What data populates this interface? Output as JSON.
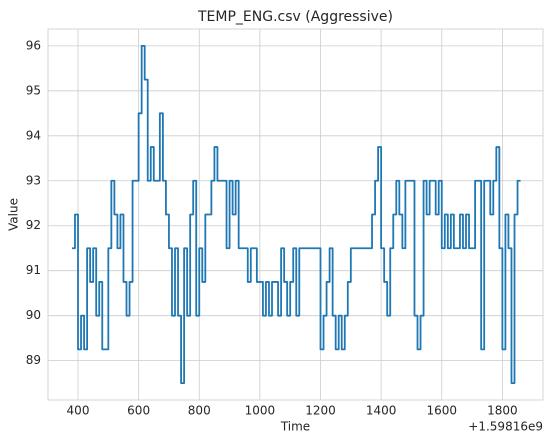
{
  "chart_data": {
    "type": "line",
    "title": "TEMP_ENG.csv (Aggressive)",
    "xlabel": "Time",
    "ylabel": "Value",
    "x_offset_label": "+1.59816e9",
    "x": [
      380,
      390,
      400,
      410,
      420,
      430,
      440,
      450,
      460,
      470,
      480,
      490,
      500,
      510,
      520,
      530,
      540,
      550,
      560,
      570,
      580,
      590,
      600,
      610,
      620,
      630,
      640,
      650,
      660,
      670,
      680,
      690,
      700,
      710,
      720,
      730,
      740,
      750,
      760,
      770,
      780,
      790,
      800,
      810,
      820,
      830,
      840,
      850,
      860,
      870,
      880,
      890,
      900,
      910,
      920,
      930,
      940,
      950,
      960,
      970,
      980,
      990,
      1000,
      1010,
      1020,
      1030,
      1040,
      1050,
      1060,
      1070,
      1080,
      1090,
      1100,
      1110,
      1120,
      1130,
      1140,
      1150,
      1160,
      1170,
      1180,
      1190,
      1200,
      1210,
      1220,
      1230,
      1240,
      1250,
      1260,
      1270,
      1280,
      1290,
      1300,
      1310,
      1320,
      1330,
      1340,
      1350,
      1360,
      1370,
      1380,
      1390,
      1400,
      1410,
      1420,
      1430,
      1440,
      1450,
      1460,
      1470,
      1480,
      1490,
      1500,
      1510,
      1520,
      1530,
      1540,
      1550,
      1560,
      1570,
      1580,
      1590,
      1600,
      1610,
      1620,
      1630,
      1640,
      1650,
      1660,
      1670,
      1680,
      1690,
      1700,
      1710,
      1720,
      1730,
      1740,
      1750,
      1760,
      1770,
      1780,
      1790,
      1800,
      1810,
      1820,
      1830,
      1840,
      1850,
      1860
    ],
    "series": [
      {
        "name": "Value",
        "color": "#1f77b4",
        "values": [
          91.5,
          92.25,
          89.25,
          90,
          89.25,
          91.5,
          90.75,
          91.5,
          90,
          90.75,
          89.25,
          89.25,
          91.5,
          93,
          92.25,
          91.5,
          92.25,
          90.75,
          90,
          90.75,
          93,
          93,
          94.5,
          96,
          95.25,
          93,
          93.75,
          93,
          93,
          94.5,
          93,
          92.25,
          91.5,
          90,
          91.5,
          90,
          88.5,
          91.5,
          90,
          92.25,
          93,
          90,
          91.5,
          90.75,
          92.25,
          92.25,
          93,
          93.75,
          93,
          93,
          93,
          91.5,
          93,
          92.25,
          93,
          91.5,
          91.5,
          91.5,
          90.75,
          91.5,
          91.5,
          90.75,
          90.75,
          90,
          90.75,
          90,
          90.75,
          90.75,
          90,
          91.5,
          90.75,
          90,
          90.75,
          91.5,
          90,
          91.5,
          91.5,
          91.5,
          91.5,
          91.5,
          91.5,
          91.5,
          89.25,
          90,
          90.75,
          91.5,
          90,
          89.25,
          90,
          89.25,
          90,
          90.75,
          91.5,
          91.5,
          91.5,
          91.5,
          91.5,
          91.5,
          91.5,
          92.25,
          93,
          93.75,
          91.5,
          90.75,
          90,
          91.5,
          92.25,
          93,
          92.25,
          91.5,
          93,
          93,
          93,
          90,
          89.25,
          90,
          93,
          92.25,
          93,
          93,
          92.25,
          93,
          91.5,
          92.25,
          91.5,
          92.25,
          91.5,
          91.5,
          92.25,
          91.5,
          92.25,
          91.5,
          91.5,
          93,
          93,
          89.25,
          93,
          93,
          92.25,
          93,
          93.75,
          91.5,
          89.25,
          92.25,
          91.5,
          88.5,
          92.25,
          93,
          93
        ]
      }
    ],
    "xlim": [
      301,
      1934
    ],
    "ylim": [
      88.125,
      96.375
    ],
    "xticks": [
      400,
      600,
      800,
      1000,
      1200,
      1400,
      1600,
      1800
    ],
    "yticks": [
      89,
      90,
      91,
      92,
      93,
      94,
      95,
      96
    ],
    "grid": true
  }
}
